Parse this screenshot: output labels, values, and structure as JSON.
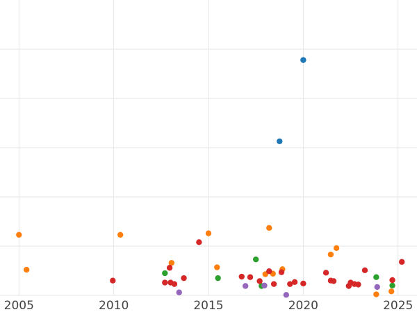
{
  "chart_data": {
    "type": "scatter",
    "title": "",
    "xlabel": "",
    "ylabel": "",
    "xlim": [
      2004.0,
      2026.0
    ],
    "ylim": [
      0,
      600
    ],
    "x_ticks": [
      2005,
      2010,
      2015,
      2020,
      2025
    ],
    "x_tick_labels": [
      "2005",
      "2010",
      "2015",
      "2020",
      "2025"
    ],
    "y_gridlines": [
      0,
      100,
      200,
      300,
      400,
      500
    ],
    "grid": true,
    "legend": "none",
    "series": [
      {
        "color": "#1f77b4",
        "points": [
          [
            2020.0,
            478
          ],
          [
            2018.75,
            313
          ]
        ]
      },
      {
        "color": "#ff7f0e",
        "points": [
          [
            2005.0,
            123
          ],
          [
            2005.4,
            52
          ],
          [
            2010.35,
            123
          ],
          [
            2013.05,
            66
          ],
          [
            2015.0,
            126
          ],
          [
            2015.45,
            57
          ],
          [
            2018.2,
            137
          ],
          [
            2018.0,
            43
          ],
          [
            2018.4,
            44
          ],
          [
            2018.9,
            53
          ],
          [
            2021.45,
            83
          ],
          [
            2021.75,
            96
          ],
          [
            2023.85,
            2
          ],
          [
            2024.65,
            8
          ]
        ]
      },
      {
        "color": "#2ca02c",
        "points": [
          [
            2012.7,
            45
          ],
          [
            2015.5,
            35
          ],
          [
            2017.5,
            73
          ],
          [
            2017.8,
            19
          ],
          [
            2023.85,
            37
          ],
          [
            2024.7,
            20
          ]
        ]
      },
      {
        "color": "#d62728",
        "points": [
          [
            2009.95,
            30
          ],
          [
            2012.7,
            26
          ],
          [
            2013.0,
            26
          ],
          [
            2012.95,
            56
          ],
          [
            2013.2,
            23
          ],
          [
            2013.7,
            35
          ],
          [
            2014.5,
            108
          ],
          [
            2016.75,
            38
          ],
          [
            2017.2,
            37
          ],
          [
            2017.7,
            29
          ],
          [
            2018.2,
            49
          ],
          [
            2018.45,
            23
          ],
          [
            2018.85,
            47
          ],
          [
            2019.3,
            23
          ],
          [
            2019.55,
            27
          ],
          [
            2020.0,
            24
          ],
          [
            2021.2,
            46
          ],
          [
            2021.45,
            30
          ],
          [
            2021.6,
            29
          ],
          [
            2022.4,
            19
          ],
          [
            2022.5,
            26
          ],
          [
            2022.7,
            23
          ],
          [
            2022.9,
            22
          ],
          [
            2023.25,
            51
          ],
          [
            2024.7,
            31
          ],
          [
            2025.2,
            68
          ]
        ]
      },
      {
        "color": "#9467bd",
        "points": [
          [
            2013.45,
            6
          ],
          [
            2016.95,
            19
          ],
          [
            2017.95,
            20
          ],
          [
            2019.1,
            1
          ],
          [
            2023.9,
            17
          ]
        ]
      }
    ]
  }
}
